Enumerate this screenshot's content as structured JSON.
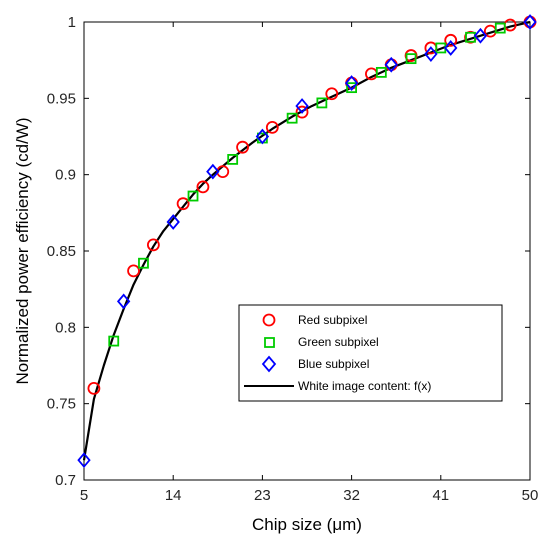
{
  "chart_data": {
    "type": "scatter",
    "xlabel": "Chip size (μm)",
    "ylabel": "Normalized power efficiency (cd/W)",
    "xlim": [
      5,
      50
    ],
    "ylim": [
      0.7,
      1.0
    ],
    "xticks": [
      5,
      14,
      23,
      32,
      41,
      50
    ],
    "yticks": [
      0.7,
      0.75,
      0.8,
      0.85,
      0.9,
      0.95,
      1.0
    ],
    "xtick_labels": [
      "5",
      "14",
      "23",
      "32",
      "41",
      "50"
    ],
    "ytick_labels": [
      "0.7",
      "0.75",
      "0.8",
      "0.85",
      "0.9",
      "0.95",
      "1"
    ],
    "grid": false,
    "legend_position": "right",
    "series": [
      {
        "name": "Red subpixel",
        "marker": "circle",
        "color": "#ff0000",
        "x": [
          6,
          10,
          12,
          15,
          17,
          19,
          21,
          24,
          27,
          30,
          32,
          34,
          36,
          38,
          40,
          42,
          44,
          46,
          48,
          50
        ],
        "y": [
          0.76,
          0.837,
          0.854,
          0.881,
          0.892,
          0.902,
          0.918,
          0.931,
          0.941,
          0.953,
          0.96,
          0.966,
          0.972,
          0.978,
          0.983,
          0.988,
          0.99,
          0.994,
          0.998,
          1.0
        ]
      },
      {
        "name": "Green subpixel",
        "marker": "square",
        "color": "#00cc00",
        "x": [
          8,
          11,
          16,
          20,
          23,
          26,
          29,
          32,
          35,
          38,
          41,
          44,
          47
        ],
        "y": [
          0.791,
          0.842,
          0.886,
          0.91,
          0.924,
          0.937,
          0.947,
          0.957,
          0.967,
          0.976,
          0.983,
          0.99,
          0.996
        ]
      },
      {
        "name": "Blue subpixel",
        "marker": "diamond",
        "color": "#0000ff",
        "x": [
          5,
          9,
          14,
          18,
          23,
          27,
          32,
          36,
          40,
          42,
          45,
          50
        ],
        "y": [
          0.713,
          0.817,
          0.869,
          0.902,
          0.925,
          0.945,
          0.96,
          0.972,
          0.979,
          0.983,
          0.991,
          1.0
        ]
      },
      {
        "name": "White image content: f(x)",
        "line": true,
        "color": "#000000",
        "x": [
          5,
          6,
          7,
          8,
          9,
          10,
          11,
          12,
          13,
          14,
          15,
          16,
          17,
          18,
          20,
          22,
          24,
          26,
          28,
          30,
          32,
          34,
          36,
          38,
          40,
          42,
          44,
          46,
          48,
          50
        ],
        "y": [
          0.713,
          0.753,
          0.775,
          0.795,
          0.812,
          0.828,
          0.841,
          0.853,
          0.863,
          0.871,
          0.879,
          0.887,
          0.894,
          0.9,
          0.911,
          0.921,
          0.93,
          0.938,
          0.945,
          0.951,
          0.957,
          0.964,
          0.97,
          0.975,
          0.98,
          0.985,
          0.989,
          0.993,
          0.997,
          1.0
        ]
      }
    ]
  }
}
